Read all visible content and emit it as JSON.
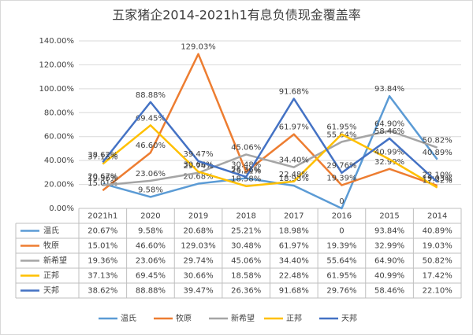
{
  "chart_data": {
    "type": "line",
    "title": "五家猪企2014-2021h1有息负债现金覆盖率",
    "categories": [
      "2021h1",
      "2020",
      "2019",
      "2018",
      "2017",
      "2016",
      "2015",
      "2014"
    ],
    "ylim": [
      0,
      140
    ],
    "yticks": [
      {
        "value": 0,
        "label": "0.00%"
      },
      {
        "value": 20,
        "label": "20.00%"
      },
      {
        "value": 40,
        "label": "40.00%"
      },
      {
        "value": 60,
        "label": "60.00%"
      },
      {
        "value": 80,
        "label": "80.00%"
      },
      {
        "value": 100,
        "label": "100.00%"
      },
      {
        "value": 120,
        "label": "120.00%"
      },
      {
        "value": 140,
        "label": "140.00%"
      }
    ],
    "grid": true,
    "series": [
      {
        "name": "温氏",
        "color": "#5b9bd5",
        "values": [
          20.67,
          9.58,
          20.68,
          25.21,
          18.98,
          0,
          93.84,
          40.89
        ],
        "value_labels": [
          "20.67%",
          "9.58%",
          "20.68%",
          "25.21%",
          "18.98%",
          "0",
          "93.84%",
          "40.89%"
        ]
      },
      {
        "name": "牧原",
        "color": "#ed7d31",
        "values": [
          15.01,
          46.6,
          129.03,
          30.48,
          61.97,
          19.39,
          32.99,
          19.03
        ],
        "value_labels": [
          "15.01%",
          "46.60%",
          "129.03%",
          "30.48%",
          "61.97%",
          "19.39%",
          "32.99%",
          "19.03%"
        ]
      },
      {
        "name": "新希望",
        "color": "#a5a5a5",
        "values": [
          19.36,
          23.06,
          29.74,
          45.06,
          34.4,
          55.64,
          64.9,
          50.82
        ],
        "value_labels": [
          "19.36%",
          "23.06%",
          "29.74%",
          "45.06%",
          "34.40%",
          "55.64%",
          "64.90%",
          "50.82%"
        ]
      },
      {
        "name": "正邦",
        "color": "#ffc000",
        "values": [
          37.13,
          69.45,
          30.66,
          18.58,
          22.48,
          61.95,
          40.99,
          17.42
        ],
        "value_labels": [
          "37.13%",
          "69.45%",
          "30.66%",
          "18.58%",
          "22.48%",
          "61.95%",
          "40.99%",
          "17.42%"
        ]
      },
      {
        "name": "天邦",
        "color": "#4472c4",
        "values": [
          38.62,
          88.88,
          39.47,
          26.36,
          91.68,
          29.76,
          58.46,
          22.1
        ],
        "value_labels": [
          "38.62%",
          "88.88%",
          "39.47%",
          "26.36%",
          "91.68%",
          "29.76%",
          "58.46%",
          "22.10%"
        ]
      }
    ]
  }
}
